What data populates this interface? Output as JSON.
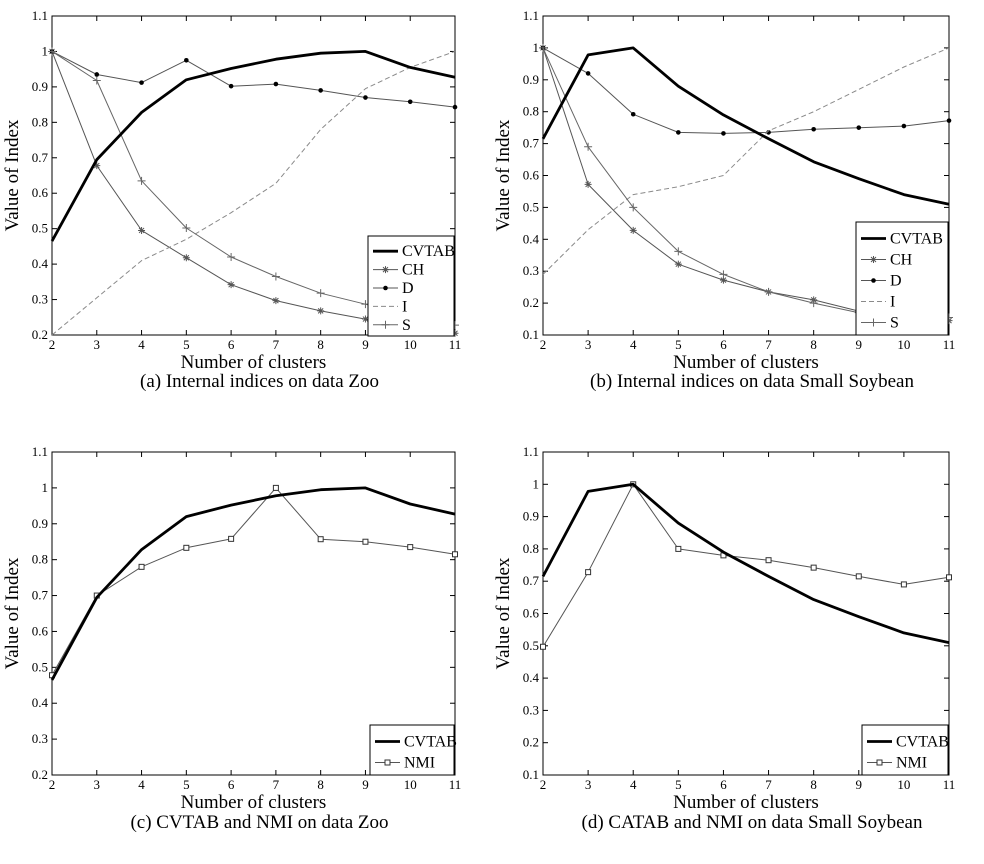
{
  "figure": {
    "captions": [
      "(a)    Internal indices on data Zoo",
      "(b)    Internal indices on data Small Soybean",
      "(c)    CVTAB and NMI on data Zoo",
      "(d)    CATAB and NMI on data Small Soybean"
    ]
  },
  "chart_data": [
    {
      "type": "line",
      "caption": "(a)    Internal indices on data Zoo",
      "xlabel": "Number of clusters",
      "ylabel": "Value of Index",
      "x": [
        2,
        3,
        4,
        5,
        6,
        7,
        8,
        9,
        10,
        11
      ],
      "xlim": [
        2,
        11
      ],
      "ylim": [
        0.2,
        1.1
      ],
      "yticks": [
        0.2,
        0.3,
        0.4,
        0.5,
        0.6,
        0.7,
        0.8,
        0.9,
        1,
        1.1
      ],
      "ytick_labels": [
        "0.2",
        "0.3",
        "0.4",
        "0.5",
        "0.6",
        "0.7",
        "0.8",
        "0.9",
        "1",
        "1.1"
      ],
      "legend": "right, middle",
      "series": [
        {
          "name": "CVTAB",
          "style": "thick",
          "values": [
            0.465,
            0.695,
            0.828,
            0.92,
            0.952,
            0.978,
            0.995,
            1.0,
            0.955,
            0.927
          ]
        },
        {
          "name": "CH",
          "style": "star",
          "values": [
            1.0,
            0.678,
            0.495,
            0.418,
            0.342,
            0.297,
            0.268,
            0.245,
            0.217,
            0.205
          ]
        },
        {
          "name": "D",
          "style": "dot",
          "values": [
            1.0,
            0.935,
            0.912,
            0.975,
            0.902,
            0.908,
            0.89,
            0.87,
            0.858,
            0.843
          ]
        },
        {
          "name": "I",
          "style": "dashed",
          "values": [
            0.2,
            0.305,
            0.41,
            0.47,
            0.545,
            0.628,
            0.78,
            0.895,
            0.955,
            1.0
          ]
        },
        {
          "name": "S",
          "style": "plus",
          "values": [
            1.0,
            0.918,
            0.635,
            0.502,
            0.42,
            0.365,
            0.318,
            0.287,
            0.253,
            0.228
          ]
        }
      ]
    },
    {
      "type": "line",
      "caption": "(b)    Internal indices on data Small Soybean",
      "xlabel": "Number of clusters",
      "ylabel": "Value of Index",
      "x": [
        2,
        3,
        4,
        5,
        6,
        7,
        8,
        9,
        10,
        11
      ],
      "xlim": [
        2,
        11
      ],
      "ylim": [
        0.1,
        1.1
      ],
      "yticks": [
        0.1,
        0.2,
        0.3,
        0.4,
        0.5,
        0.6,
        0.7,
        0.8,
        0.9,
        1,
        1.1
      ],
      "ytick_labels": [
        "0.1",
        "0.2",
        "0.3",
        "0.4",
        "0.5",
        "0.6",
        "0.7",
        "0.8",
        "0.9",
        "1",
        "1.1"
      ],
      "legend": "bottom-right",
      "series": [
        {
          "name": "CVTAB",
          "style": "thick",
          "values": [
            0.715,
            0.978,
            1.0,
            0.88,
            0.79,
            0.715,
            0.643,
            0.59,
            0.54,
            0.51
          ]
        },
        {
          "name": "CH",
          "style": "star",
          "values": [
            1.0,
            0.572,
            0.428,
            0.322,
            0.272,
            0.235,
            0.21,
            0.175,
            0.155,
            0.145
          ]
        },
        {
          "name": "D",
          "style": "dot",
          "values": [
            1.0,
            0.92,
            0.792,
            0.735,
            0.732,
            0.735,
            0.745,
            0.75,
            0.755,
            0.772
          ]
        },
        {
          "name": "I",
          "style": "dashed",
          "values": [
            0.29,
            0.43,
            0.54,
            0.565,
            0.6,
            0.74,
            0.8,
            0.87,
            0.94,
            1.0
          ]
        },
        {
          "name": "S",
          "style": "plus",
          "values": [
            1.0,
            0.69,
            0.5,
            0.362,
            0.29,
            0.235,
            0.2,
            0.17,
            0.16,
            0.155
          ]
        }
      ]
    },
    {
      "type": "line",
      "caption": "(c)    CVTAB and NMI on data Zoo",
      "xlabel": "Number of clusters",
      "ylabel": "Value of Index",
      "x": [
        2,
        3,
        4,
        5,
        6,
        7,
        8,
        9,
        10,
        11
      ],
      "xlim": [
        2,
        11
      ],
      "ylim": [
        0.2,
        1.1
      ],
      "yticks": [
        0.2,
        0.3,
        0.4,
        0.5,
        0.6,
        0.7,
        0.8,
        0.9,
        1,
        1.1
      ],
      "ytick_labels": [
        "0.2",
        "0.3",
        "0.4",
        "0.5",
        "0.6",
        "0.7",
        "0.8",
        "0.9",
        "1",
        "1.1"
      ],
      "legend": "bottom-right",
      "series": [
        {
          "name": "CVTAB",
          "style": "thick",
          "values": [
            0.465,
            0.695,
            0.828,
            0.92,
            0.952,
            0.978,
            0.995,
            1.0,
            0.955,
            0.927
          ]
        },
        {
          "name": "NMI",
          "style": "square",
          "values": [
            0.478,
            0.7,
            0.78,
            0.833,
            0.858,
            1.0,
            0.857,
            0.85,
            0.835,
            0.815
          ]
        }
      ]
    },
    {
      "type": "line",
      "caption": "(d)    CATAB and NMI on data Small Soybean",
      "xlabel": "Number of clusters",
      "ylabel": "Value of Index",
      "x": [
        2,
        3,
        4,
        5,
        6,
        7,
        8,
        9,
        10,
        11
      ],
      "xlim": [
        2,
        11
      ],
      "ylim": [
        0.1,
        1.1
      ],
      "yticks": [
        0.1,
        0.2,
        0.3,
        0.4,
        0.5,
        0.6,
        0.7,
        0.8,
        0.9,
        1,
        1.1
      ],
      "ytick_labels": [
        "0.1",
        "0.2",
        "0.3",
        "0.4",
        "0.5",
        "0.6",
        "0.7",
        "0.8",
        "0.9",
        "1",
        "1.1"
      ],
      "legend": "bottom-right",
      "series": [
        {
          "name": "CVTAB",
          "style": "thick",
          "values": [
            0.715,
            0.978,
            1.0,
            0.88,
            0.79,
            0.715,
            0.643,
            0.59,
            0.54,
            0.51
          ]
        },
        {
          "name": "NMI",
          "style": "square",
          "values": [
            0.497,
            0.728,
            1.0,
            0.8,
            0.78,
            0.765,
            0.742,
            0.715,
            0.69,
            0.712
          ]
        }
      ]
    }
  ]
}
